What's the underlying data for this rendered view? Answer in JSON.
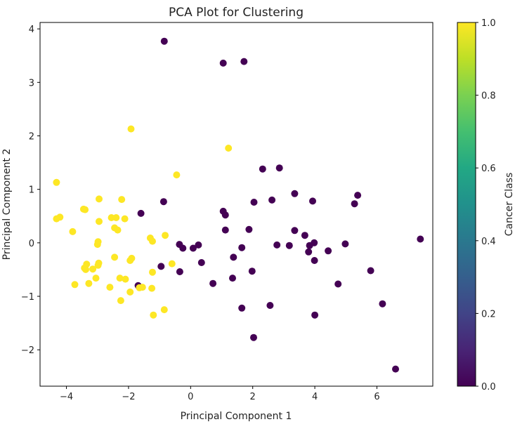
{
  "chart_data": {
    "type": "scatter",
    "title": "PCA Plot for Clustering",
    "xlabel": "Principal Component 1",
    "ylabel": "Principal Component 2",
    "xlim": [
      -4.85,
      7.8
    ],
    "ylim": [
      -2.68,
      4.12
    ],
    "xticks": [
      -4,
      -2,
      0,
      2,
      4,
      6
    ],
    "yticks": [
      -2,
      -1,
      0,
      1,
      2,
      3,
      4
    ],
    "grid": false,
    "colormap": "viridis",
    "colorbar": {
      "label": "Cancer Class",
      "ticks": [
        "0.0",
        "0.2",
        "0.4",
        "0.6",
        "0.8",
        "1.0"
      ],
      "range": [
        0,
        1
      ]
    },
    "colors": {
      "class_0": "#440154",
      "class_1": "#fde725"
    },
    "points": [
      {
        "x": -0.85,
        "y": 3.77,
        "c": 0
      },
      {
        "x": 1.05,
        "y": 3.36,
        "c": 0
      },
      {
        "x": 1.72,
        "y": 3.39,
        "c": 0
      },
      {
        "x": 2.32,
        "y": 1.38,
        "c": 0
      },
      {
        "x": 2.86,
        "y": 1.4,
        "c": 0
      },
      {
        "x": 3.35,
        "y": 0.92,
        "c": 0
      },
      {
        "x": 2.62,
        "y": 0.8,
        "c": 0
      },
      {
        "x": 2.04,
        "y": 0.76,
        "c": 0
      },
      {
        "x": 3.93,
        "y": 0.78,
        "c": 0
      },
      {
        "x": 5.38,
        "y": 0.89,
        "c": 0
      },
      {
        "x": 5.28,
        "y": 0.73,
        "c": 0
      },
      {
        "x": 1.05,
        "y": 0.59,
        "c": 0
      },
      {
        "x": 1.12,
        "y": 0.52,
        "c": 0
      },
      {
        "x": 1.12,
        "y": 0.24,
        "c": 0
      },
      {
        "x": 1.88,
        "y": 0.25,
        "c": 0
      },
      {
        "x": -0.87,
        "y": 0.77,
        "c": 0
      },
      {
        "x": -1.6,
        "y": 0.55,
        "c": 0
      },
      {
        "x": 3.35,
        "y": 0.23,
        "c": 0
      },
      {
        "x": 3.68,
        "y": 0.14,
        "c": 0
      },
      {
        "x": 3.83,
        "y": -0.05,
        "c": 0
      },
      {
        "x": 3.98,
        "y": 0.0,
        "c": 0
      },
      {
        "x": 3.8,
        "y": -0.17,
        "c": 0
      },
      {
        "x": 4.43,
        "y": -0.15,
        "c": 0
      },
      {
        "x": 4.98,
        "y": -0.02,
        "c": 0
      },
      {
        "x": 7.4,
        "y": 0.07,
        "c": 0
      },
      {
        "x": 2.78,
        "y": -0.04,
        "c": 0
      },
      {
        "x": 3.18,
        "y": -0.05,
        "c": 0
      },
      {
        "x": 3.99,
        "y": -0.33,
        "c": 0
      },
      {
        "x": -0.36,
        "y": -0.03,
        "c": 0
      },
      {
        "x": -0.25,
        "y": -0.1,
        "c": 0
      },
      {
        "x": 0.08,
        "y": -0.1,
        "c": 0
      },
      {
        "x": 0.25,
        "y": -0.04,
        "c": 0
      },
      {
        "x": 1.65,
        "y": -0.09,
        "c": 0
      },
      {
        "x": 1.38,
        "y": -0.27,
        "c": 0
      },
      {
        "x": 0.35,
        "y": -0.37,
        "c": 0
      },
      {
        "x": -0.95,
        "y": -0.44,
        "c": 0
      },
      {
        "x": -0.35,
        "y": -0.54,
        "c": 0
      },
      {
        "x": 1.98,
        "y": -0.53,
        "c": 0
      },
      {
        "x": 1.35,
        "y": -0.66,
        "c": 0
      },
      {
        "x": 0.72,
        "y": -0.76,
        "c": 0
      },
      {
        "x": 4.75,
        "y": -0.77,
        "c": 0
      },
      {
        "x": 5.8,
        "y": -0.52,
        "c": 0
      },
      {
        "x": -1.69,
        "y": -0.8,
        "c": 0
      },
      {
        "x": 1.65,
        "y": -1.22,
        "c": 0
      },
      {
        "x": 2.56,
        "y": -1.17,
        "c": 0
      },
      {
        "x": 4.0,
        "y": -1.35,
        "c": 0
      },
      {
        "x": 6.18,
        "y": -1.14,
        "c": 0
      },
      {
        "x": 2.03,
        "y": -1.77,
        "c": 0
      },
      {
        "x": 6.6,
        "y": -2.36,
        "c": 0
      },
      {
        "x": -1.92,
        "y": 2.13,
        "c": 1
      },
      {
        "x": 1.22,
        "y": 1.77,
        "c": 1
      },
      {
        "x": -0.45,
        "y": 1.27,
        "c": 1
      },
      {
        "x": -4.32,
        "y": 1.13,
        "c": 1
      },
      {
        "x": -2.95,
        "y": 0.82,
        "c": 1
      },
      {
        "x": -2.22,
        "y": 0.81,
        "c": 1
      },
      {
        "x": -3.45,
        "y": 0.63,
        "c": 1
      },
      {
        "x": -3.4,
        "y": 0.62,
        "c": 1
      },
      {
        "x": -4.21,
        "y": 0.48,
        "c": 1
      },
      {
        "x": -4.32,
        "y": 0.45,
        "c": 1
      },
      {
        "x": -2.55,
        "y": 0.47,
        "c": 1
      },
      {
        "x": -2.4,
        "y": 0.47,
        "c": 1
      },
      {
        "x": -2.12,
        "y": 0.45,
        "c": 1
      },
      {
        "x": -2.95,
        "y": 0.4,
        "c": 1
      },
      {
        "x": -2.45,
        "y": 0.28,
        "c": 1
      },
      {
        "x": -2.35,
        "y": 0.24,
        "c": 1
      },
      {
        "x": -3.8,
        "y": 0.21,
        "c": 1
      },
      {
        "x": -0.82,
        "y": 0.14,
        "c": 1
      },
      {
        "x": -1.3,
        "y": 0.09,
        "c": 1
      },
      {
        "x": -1.23,
        "y": 0.03,
        "c": 1
      },
      {
        "x": -2.98,
        "y": 0.02,
        "c": 1
      },
      {
        "x": -3.0,
        "y": -0.03,
        "c": 1
      },
      {
        "x": -2.45,
        "y": -0.27,
        "c": 1
      },
      {
        "x": -1.9,
        "y": -0.29,
        "c": 1
      },
      {
        "x": -1.95,
        "y": -0.33,
        "c": 1
      },
      {
        "x": -3.35,
        "y": -0.4,
        "c": 1
      },
      {
        "x": -2.96,
        "y": -0.38,
        "c": 1
      },
      {
        "x": -2.98,
        "y": -0.42,
        "c": 1
      },
      {
        "x": -3.42,
        "y": -0.47,
        "c": 1
      },
      {
        "x": -3.38,
        "y": -0.5,
        "c": 1
      },
      {
        "x": -3.15,
        "y": -0.49,
        "c": 1
      },
      {
        "x": -0.6,
        "y": -0.39,
        "c": 1
      },
      {
        "x": -1.23,
        "y": -0.55,
        "c": 1
      },
      {
        "x": -3.05,
        "y": -0.66,
        "c": 1
      },
      {
        "x": -2.28,
        "y": -0.66,
        "c": 1
      },
      {
        "x": -2.1,
        "y": -0.68,
        "c": 1
      },
      {
        "x": -3.73,
        "y": -0.78,
        "c": 1
      },
      {
        "x": -3.28,
        "y": -0.76,
        "c": 1
      },
      {
        "x": -2.6,
        "y": -0.83,
        "c": 1
      },
      {
        "x": -1.65,
        "y": -0.84,
        "c": 1
      },
      {
        "x": -1.25,
        "y": -0.85,
        "c": 1
      },
      {
        "x": -1.55,
        "y": -0.83,
        "c": 1
      },
      {
        "x": -1.95,
        "y": -0.92,
        "c": 1
      },
      {
        "x": -2.25,
        "y": -1.08,
        "c": 1
      },
      {
        "x": -0.85,
        "y": -1.25,
        "c": 1
      },
      {
        "x": -1.2,
        "y": -1.35,
        "c": 1
      }
    ]
  }
}
